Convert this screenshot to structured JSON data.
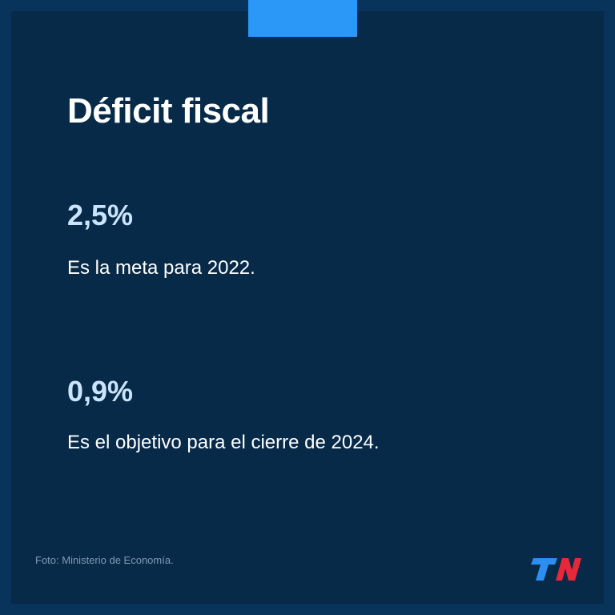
{
  "title": "Déficit fiscal",
  "stats": [
    {
      "value": "2,5%",
      "description": "Es la meta para 2022."
    },
    {
      "value": "0,9%",
      "description": "Es el objetivo para el cierre de 2024."
    }
  ],
  "credit": "Foto: Ministerio de Economía.",
  "logo": {
    "text": "TN",
    "icon": "tn-logo"
  },
  "colors": {
    "background": "#062a48",
    "border": "#08345c",
    "accent": "#2b97f7",
    "stat_value": "#cbe4fb",
    "text": "#ffffff",
    "logo_blue": "#2b8ef0",
    "logo_red": "#e8283a"
  }
}
